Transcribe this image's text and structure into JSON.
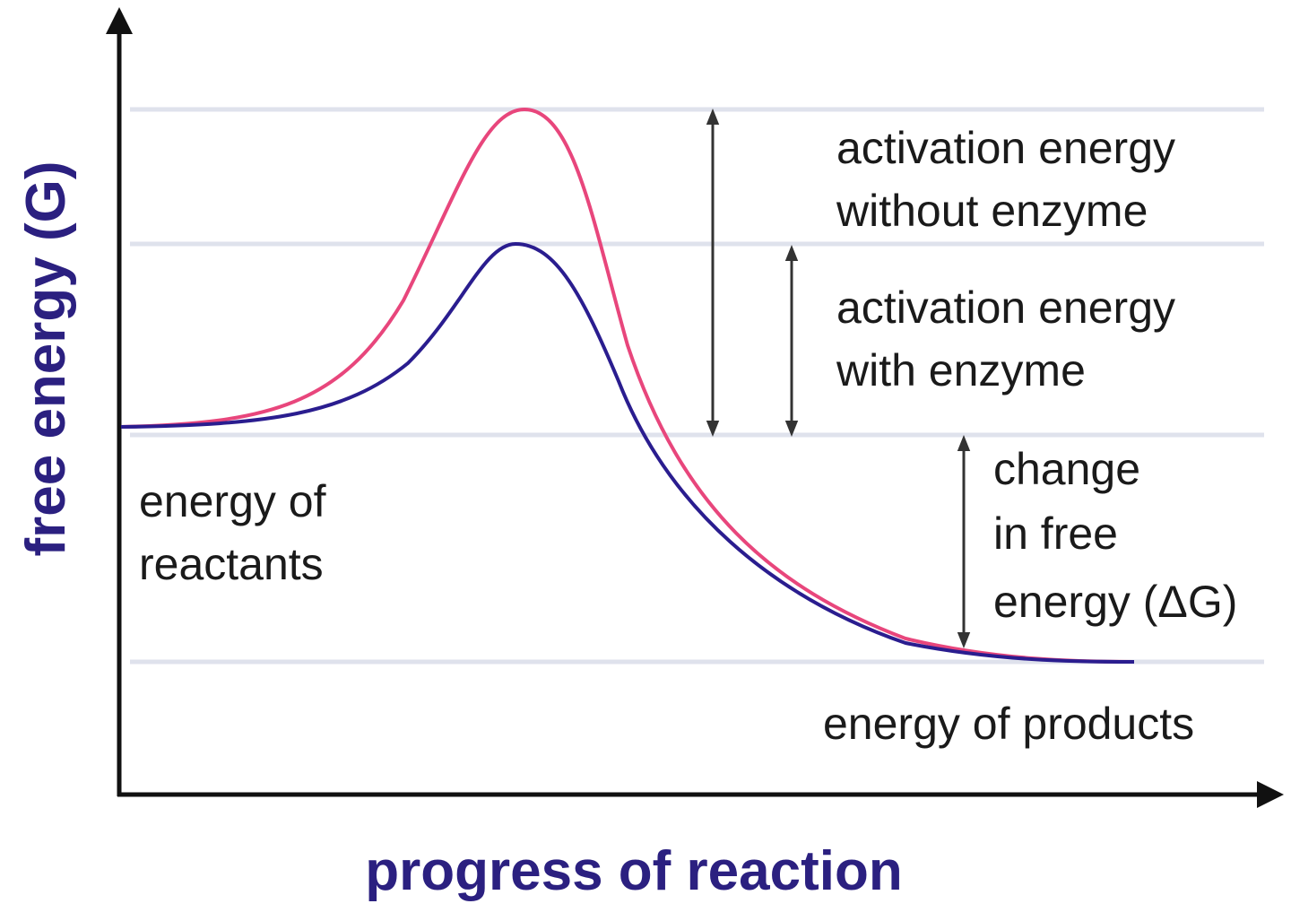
{
  "diagram": {
    "y_axis_label": "free energy (G)",
    "x_axis_label": "progress of reaction",
    "labels": {
      "activation_without_1": "activation energy",
      "activation_without_2": "without enzyme",
      "activation_with_1": "activation energy",
      "activation_with_2": "with enzyme",
      "delta_g_1": "change",
      "delta_g_2": "in free",
      "delta_g_3": "energy (ΔG)",
      "reactants_1": "energy of",
      "reactants_2": "reactants",
      "products": "energy of products"
    },
    "curves": [
      {
        "label": "without enzyme",
        "color": "#e8467c"
      },
      {
        "label": "with enzyme",
        "color": "#2a1d8f"
      }
    ],
    "axis_color": "#111111",
    "axis_title_color": "#2b2080"
  }
}
